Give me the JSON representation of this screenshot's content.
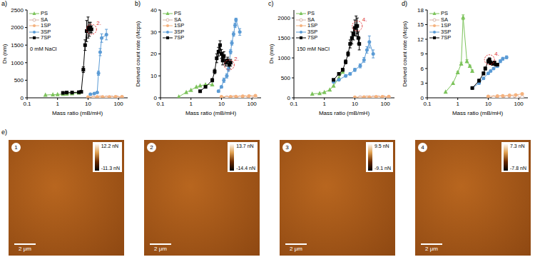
{
  "chart_data": [
    {
      "type": "line",
      "title": "a)",
      "subtitle": "0 mM NaCl",
      "x_label": "Mass ratio (mB/mH)",
      "y_label": "Dₕ (nm)",
      "log": "x",
      "grid": false,
      "legend": "top-left",
      "xlim": [
        0.1,
        200
      ],
      "xticks": [
        0.1,
        1,
        10,
        100
      ],
      "ylim": [
        0,
        2500
      ],
      "yticks": [
        0,
        500,
        1000,
        1500,
        2000,
        2500
      ],
      "annotations": [
        {
          "text": "2.",
          "x": 13,
          "y": 1950
        }
      ],
      "series": [
        {
          "name": "PS",
          "color": "#7cc35b",
          "marker": "triangle",
          "x": [
            0.4,
            0.7,
            1,
            1.5,
            2,
            3,
            5
          ],
          "values": [
            80,
            90,
            95,
            105,
            110,
            120,
            140
          ]
        },
        {
          "name": "SA",
          "color": "#d8b4a8",
          "marker": "circle_open",
          "x": [
            15,
            25,
            40,
            60,
            90,
            130
          ],
          "values": [
            10,
            10,
            10,
            10,
            10,
            10
          ]
        },
        {
          "name": "1SP",
          "color": "#f5b27e",
          "marker": "circle",
          "x": [
            10,
            20,
            30,
            50,
            80,
            130
          ],
          "values": [
            20,
            25,
            25,
            25,
            30,
            30
          ]
        },
        {
          "name": "3SP",
          "color": "#5b9bd5",
          "marker": "circle",
          "x": [
            12,
            16,
            20,
            22,
            25,
            28,
            40
          ],
          "values": [
            100,
            120,
            150,
            700,
            1300,
            1700,
            1800
          ],
          "errors": [
            10,
            10,
            15,
            60,
            100,
            120,
            150
          ]
        },
        {
          "name": "7SP",
          "color": "#000000",
          "marker": "square",
          "x": [
            1.5,
            2,
            3,
            5,
            6,
            7,
            8,
            9,
            10,
            11,
            12,
            13
          ],
          "values": [
            140,
            150,
            150,
            160,
            170,
            800,
            1500,
            1900,
            2000,
            1950,
            2000,
            1950
          ],
          "errors": [
            10,
            10,
            10,
            10,
            15,
            80,
            150,
            300,
            300,
            200,
            150,
            100
          ]
        }
      ]
    },
    {
      "type": "line",
      "title": "b)",
      "x_label": "Mass ratio (mB/mH)",
      "y_label": "Derived count rate (Mcps)",
      "log": "x",
      "grid": false,
      "legend": "top-left",
      "xlim": [
        0.1,
        200
      ],
      "xticks": [
        0.1,
        1,
        10,
        100
      ],
      "ylim": [
        0,
        40
      ],
      "yticks": [
        0,
        10,
        20,
        30,
        40
      ],
      "annotations": [
        {
          "text": "2.",
          "x": 18,
          "y": 15
        }
      ],
      "series": [
        {
          "name": "PS",
          "color": "#7cc35b",
          "marker": "triangle",
          "x": [
            0.4,
            0.7,
            1,
            1.5,
            2,
            3,
            5
          ],
          "values": [
            0.5,
            2.5,
            3.5,
            5,
            5.5,
            6,
            6
          ]
        },
        {
          "name": "SA",
          "color": "#d8b4a8",
          "marker": "circle_open",
          "x": [
            15,
            25,
            40,
            60,
            90,
            130
          ],
          "values": [
            0.2,
            0.2,
            0.2,
            0.2,
            0.2,
            0.2
          ]
        },
        {
          "name": "1SP",
          "color": "#f5b27e",
          "marker": "circle",
          "x": [
            10,
            20,
            30,
            50,
            80,
            130
          ],
          "values": [
            0.5,
            0.5,
            0.6,
            0.7,
            0.8,
            1
          ]
        },
        {
          "name": "3SP",
          "color": "#5b9bd5",
          "marker": "circle",
          "x": [
            8,
            10,
            12,
            15,
            17,
            20,
            22,
            25,
            28,
            30,
            40
          ],
          "values": [
            3,
            5,
            8,
            10,
            13,
            21,
            25,
            29,
            33,
            35.5,
            30
          ],
          "errors": [
            0.5,
            0.5,
            1,
            1,
            1,
            1,
            1,
            1,
            1,
            0.8,
            1.5
          ]
        },
        {
          "name": "7SP",
          "color": "#000000",
          "marker": "square",
          "x": [
            2,
            3,
            5,
            6,
            7,
            8,
            9,
            10,
            11,
            12,
            14,
            16,
            18,
            20
          ],
          "values": [
            3,
            5,
            8,
            12,
            18,
            21,
            24,
            20,
            17,
            19,
            16,
            17,
            15,
            16
          ],
          "errors": [
            0.3,
            0.5,
            0.8,
            1,
            2,
            2,
            2,
            2,
            2,
            2,
            1.5,
            1.5,
            1.5,
            1.5
          ]
        }
      ]
    },
    {
      "type": "line",
      "title": "c)",
      "subtitle": "150 mM NaCl",
      "x_label": "Mass ratio (mB/mH)",
      "y_label": "Dₕ (nm)",
      "log": "x",
      "grid": false,
      "legend": "top-left",
      "xlim": [
        0.1,
        200
      ],
      "xticks": [
        0.1,
        1,
        10,
        100
      ],
      "ylim": [
        0,
        2200
      ],
      "yticks": [
        0,
        500,
        1000,
        1500,
        2000
      ],
      "annotations": [
        {
          "text": "4.",
          "x": 12,
          "y": 1800
        }
      ],
      "series": [
        {
          "name": "PS",
          "color": "#7cc35b",
          "marker": "triangle",
          "x": [
            0.4,
            0.7,
            1,
            1.5,
            2,
            3,
            4
          ],
          "values": [
            100,
            110,
            140,
            200,
            300,
            500,
            650
          ]
        },
        {
          "name": "SA",
          "color": "#d8b4a8",
          "marker": "circle_open",
          "x": [
            15,
            25,
            40,
            60,
            90,
            130
          ],
          "values": [
            10,
            10,
            10,
            10,
            10,
            10
          ]
        },
        {
          "name": "1SP",
          "color": "#f5b27e",
          "marker": "circle",
          "x": [
            10,
            20,
            30,
            50,
            80,
            130
          ],
          "values": [
            15,
            20,
            20,
            25,
            25,
            30
          ]
        },
        {
          "name": "3SP",
          "color": "#5b9bd5",
          "marker": "circle",
          "x": [
            2,
            3,
            5,
            7,
            10,
            15,
            20,
            25,
            30,
            40
          ],
          "values": [
            400,
            450,
            550,
            600,
            700,
            800,
            950,
            1200,
            1400,
            1100
          ],
          "errors": [
            20,
            20,
            30,
            30,
            40,
            50,
            60,
            80,
            150,
            100
          ]
        },
        {
          "name": "7SP",
          "color": "#000000",
          "marker": "square",
          "x": [
            2,
            3,
            4,
            5,
            6,
            7,
            8,
            9,
            10,
            11,
            12,
            13,
            14
          ],
          "values": [
            450,
            600,
            700,
            900,
            1100,
            1350,
            1500,
            1600,
            1750,
            1800,
            1800,
            1500,
            1350
          ],
          "errors": [
            20,
            30,
            40,
            50,
            60,
            100,
            150,
            150,
            200,
            250,
            200,
            150,
            150
          ]
        }
      ]
    },
    {
      "type": "line",
      "title": "d)",
      "x_label": "Mass ratio (mB/mH)",
      "y_label": "Derived count rate (Mcps)",
      "log": "x",
      "grid": false,
      "legend": "top-left",
      "xlim": [
        0.1,
        200
      ],
      "xticks": [
        0.1,
        1,
        10,
        100
      ],
      "ylim": [
        0,
        18
      ],
      "yticks": [
        0,
        3,
        6,
        9,
        12,
        15,
        18
      ],
      "annotations": [
        {
          "text": "4.",
          "x": 11,
          "y": 7.8
        }
      ],
      "series": [
        {
          "name": "PS",
          "color": "#7cc35b",
          "marker": "triangle",
          "x": [
            0.4,
            0.7,
            1,
            1.3,
            1.5,
            2,
            2.5,
            3
          ],
          "values": [
            1.2,
            3,
            5.2,
            7,
            16.5,
            7.5,
            6.5,
            5.5
          ],
          "errors": [
            0,
            0,
            0.2,
            0.3,
            0.5,
            0.3,
            0.2,
            0.2
          ]
        },
        {
          "name": "SA",
          "color": "#d8b4a8",
          "marker": "circle_open",
          "x": [
            15,
            25,
            40,
            60,
            90,
            130
          ],
          "values": [
            0.1,
            0.1,
            0.1,
            0.1,
            0.1,
            0.1
          ]
        },
        {
          "name": "1SP",
          "color": "#f5b27e",
          "marker": "circle",
          "x": [
            10,
            20,
            30,
            50,
            80,
            130
          ],
          "values": [
            0.3,
            0.35,
            0.4,
            0.5,
            0.6,
            0.8
          ]
        },
        {
          "name": "3SP",
          "color": "#5b9bd5",
          "marker": "circle",
          "x": [
            3,
            5,
            7,
            10,
            12,
            15,
            20,
            25,
            30,
            40
          ],
          "values": [
            2,
            3,
            4,
            5,
            5.5,
            6,
            6.5,
            7.5,
            8,
            8.3
          ],
          "errors": [
            0.1,
            0.1,
            0.2,
            0.2,
            0.2,
            0.2,
            0.3,
            0.3,
            0.3,
            0.3
          ]
        },
        {
          "name": "7SP",
          "color": "#000000",
          "marker": "square",
          "x": [
            3,
            5,
            7,
            8,
            10,
            11,
            12,
            14,
            16,
            18,
            20
          ],
          "values": [
            2,
            3.5,
            5,
            6,
            7.5,
            7.8,
            7.2,
            7,
            7.2,
            6.8,
            6.8
          ],
          "errors": [
            0.2,
            0.3,
            0.3,
            0.3,
            0.4,
            0.4,
            0.4,
            0.3,
            0.3,
            0.3,
            0.3
          ]
        }
      ]
    }
  ],
  "images": {
    "title": "e)",
    "panels": [
      {
        "label": "1",
        "colorbar_labels": [
          "12.2 nN",
          "-11.3 nN"
        ],
        "scale_bar": "2 μm"
      },
      {
        "label": "2",
        "colorbar_labels": [
          "13.7 nN",
          "-14.4 nN"
        ],
        "scale_bar": "2 μm"
      },
      {
        "label": "3",
        "colorbar_labels": [
          "9.5 nN",
          "-9.1 nN"
        ],
        "scale_bar": "2 μm"
      },
      {
        "label": "4",
        "colorbar_labels": [
          "7.3 nN",
          "-7.8 nN"
        ],
        "scale_bar": "2 μm"
      }
    ]
  }
}
